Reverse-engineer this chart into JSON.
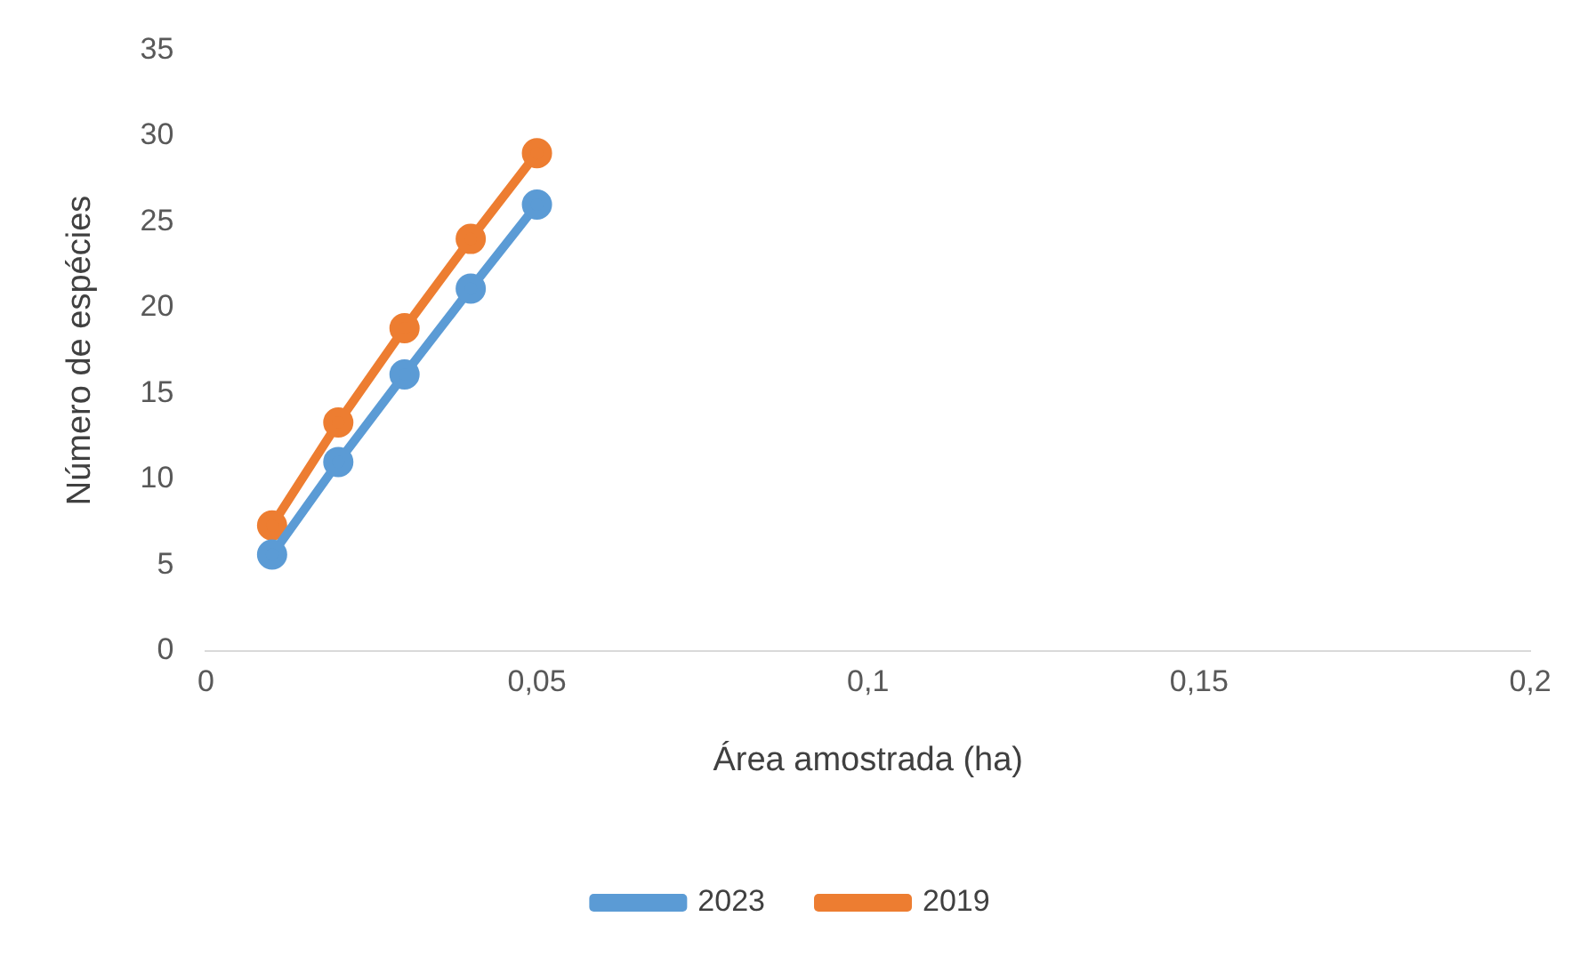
{
  "chart_data": {
    "type": "line",
    "xlabel": "Área amostrada (ha)",
    "ylabel": "Número de espécies",
    "x": [
      0.01,
      0.02,
      0.03,
      0.04,
      0.05
    ],
    "series": [
      {
        "name": "2023",
        "color": "#5b9bd5",
        "values": [
          5.6,
          11,
          16.1,
          21.1,
          26
        ]
      },
      {
        "name": "2019",
        "color": "#ed7d31",
        "values": [
          7.3,
          13.3,
          18.8,
          24,
          29
        ]
      }
    ],
    "xlim": [
      0,
      0.2
    ],
    "xticks": [
      0,
      {
        "value": 0.05,
        "label": "0,05"
      },
      {
        "value": 0.1,
        "label": "0,1"
      },
      {
        "value": 0.15,
        "label": "0,15"
      },
      {
        "value": 0.2,
        "label": "0,2"
      }
    ],
    "ylim": [
      0,
      35
    ],
    "yticks": [
      0,
      5,
      10,
      15,
      20,
      25,
      30,
      35
    ],
    "grid": false,
    "legend": "bottom",
    "marker": "circle",
    "line_style": "solid"
  }
}
